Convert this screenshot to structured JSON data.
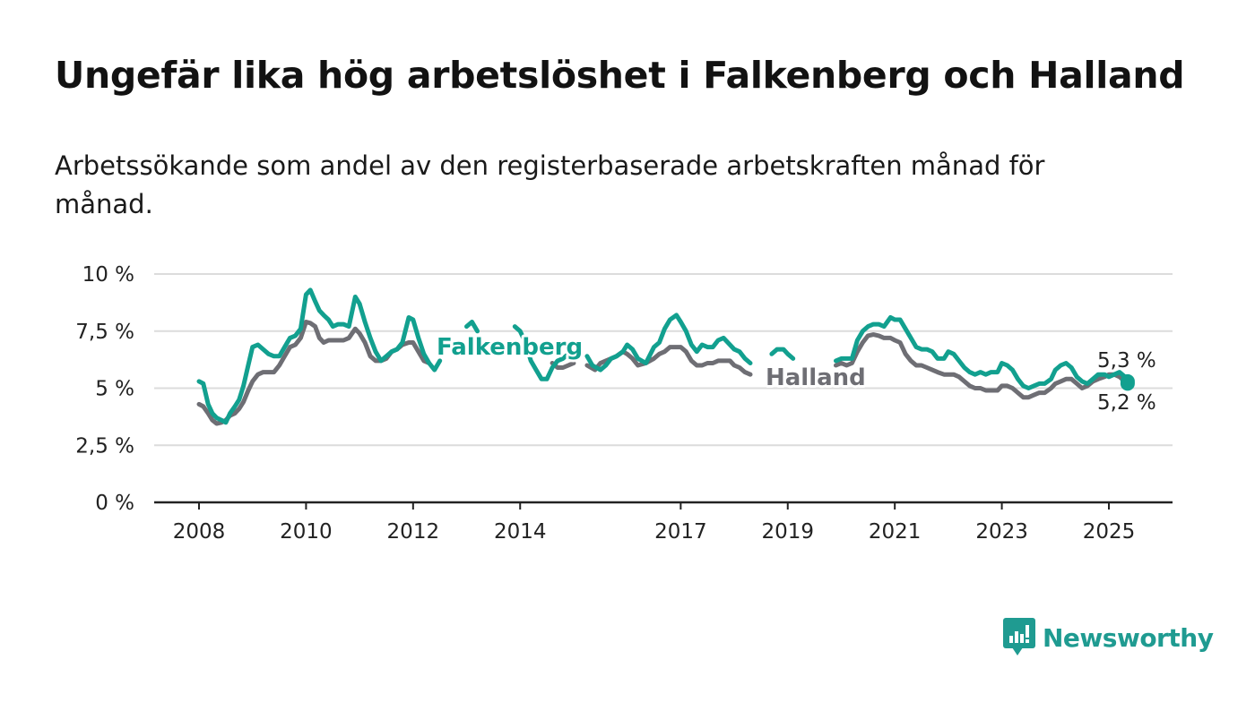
{
  "title": "Ungefär lika hög arbetslöshet i Falkenberg och Halland",
  "subtitle": "Arbetssökande som andel av den registerbaserade arbetskraften månad för månad.",
  "colors": {
    "falkenberg": "#12a08f",
    "halland": "#6e6e74",
    "grid": "#dcdcdc",
    "axis": "#222222"
  },
  "logo": {
    "text": "Newsworthy",
    "icon": "newsworthy-logo-icon"
  },
  "chart_data": {
    "type": "line",
    "x_unit": "year",
    "x_range": [
      2008,
      2025.9
    ],
    "x_ticks": [
      "2008",
      "2010",
      "2012",
      "2014",
      "2017",
      "2019",
      "2021",
      "2023",
      "2025"
    ],
    "ylim": [
      0,
      10
    ],
    "y_ticks": [
      "0 %",
      "2,5 %",
      "5 %",
      "7,5 %",
      "10 %"
    ],
    "grid": true,
    "series": [
      {
        "name": "Halland",
        "end_label": "5,2 %",
        "points": [
          [
            2008.0,
            4.3
          ],
          [
            2008.08,
            4.2
          ],
          [
            2008.17,
            3.9
          ],
          [
            2008.25,
            3.6
          ],
          [
            2008.33,
            3.45
          ],
          [
            2008.42,
            3.5
          ],
          [
            2008.5,
            3.6
          ],
          [
            2008.58,
            3.8
          ],
          [
            2008.67,
            3.9
          ],
          [
            2008.75,
            4.1
          ],
          [
            2008.83,
            4.4
          ],
          [
            2008.92,
            4.9
          ],
          [
            2009.0,
            5.3
          ],
          [
            2009.1,
            5.6
          ],
          [
            2009.2,
            5.7
          ],
          [
            2009.3,
            5.7
          ],
          [
            2009.4,
            5.7
          ],
          [
            2009.5,
            6.0
          ],
          [
            2009.6,
            6.4
          ],
          [
            2009.7,
            6.8
          ],
          [
            2009.8,
            6.9
          ],
          [
            2009.9,
            7.2
          ],
          [
            2010.0,
            7.9
          ],
          [
            2010.08,
            7.85
          ],
          [
            2010.17,
            7.7
          ],
          [
            2010.25,
            7.2
          ],
          [
            2010.33,
            7.0
          ],
          [
            2010.42,
            7.1
          ],
          [
            2010.5,
            7.1
          ],
          [
            2010.6,
            7.1
          ],
          [
            2010.7,
            7.1
          ],
          [
            2010.8,
            7.2
          ],
          [
            2010.92,
            7.6
          ],
          [
            2011.0,
            7.4
          ],
          [
            2011.1,
            7.0
          ],
          [
            2011.2,
            6.4
          ],
          [
            2011.3,
            6.2
          ],
          [
            2011.4,
            6.2
          ],
          [
            2011.5,
            6.3
          ],
          [
            2011.6,
            6.6
          ],
          [
            2011.7,
            6.7
          ],
          [
            2011.8,
            6.9
          ],
          [
            2011.92,
            7.0
          ],
          [
            2012.0,
            7.0
          ],
          [
            2012.1,
            6.6
          ],
          [
            2012.2,
            6.2
          ],
          [
            2012.3,
            6.1
          ],
          [
            2014.6,
            6.1
          ],
          [
            2014.7,
            5.9
          ],
          [
            2014.8,
            5.9
          ],
          [
            2014.9,
            6.0
          ],
          [
            2015.0,
            6.1
          ],
          [
            2015.25,
            6.0
          ],
          [
            2015.4,
            5.8
          ],
          [
            2015.5,
            6.1
          ],
          [
            2015.6,
            6.2
          ],
          [
            2015.7,
            6.3
          ],
          [
            2015.8,
            6.4
          ],
          [
            2015.92,
            6.6
          ],
          [
            2016.0,
            6.5
          ],
          [
            2016.1,
            6.3
          ],
          [
            2016.2,
            6.0
          ],
          [
            2016.35,
            6.1
          ],
          [
            2016.5,
            6.3
          ],
          [
            2016.6,
            6.5
          ],
          [
            2016.7,
            6.6
          ],
          [
            2016.8,
            6.8
          ],
          [
            2016.92,
            6.8
          ],
          [
            2017.0,
            6.8
          ],
          [
            2017.1,
            6.6
          ],
          [
            2017.2,
            6.2
          ],
          [
            2017.3,
            6.0
          ],
          [
            2017.4,
            6.0
          ],
          [
            2017.5,
            6.1
          ],
          [
            2017.6,
            6.1
          ],
          [
            2017.7,
            6.2
          ],
          [
            2017.8,
            6.2
          ],
          [
            2017.92,
            6.2
          ],
          [
            2018.0,
            6.0
          ],
          [
            2018.1,
            5.9
          ],
          [
            2018.2,
            5.7
          ],
          [
            2018.3,
            5.6
          ],
          [
            2019.9,
            6.0
          ],
          [
            2020.0,
            6.1
          ],
          [
            2020.1,
            6.0
          ],
          [
            2020.2,
            6.1
          ],
          [
            2020.3,
            6.6
          ],
          [
            2020.4,
            7.0
          ],
          [
            2020.5,
            7.3
          ],
          [
            2020.6,
            7.35
          ],
          [
            2020.7,
            7.3
          ],
          [
            2020.8,
            7.2
          ],
          [
            2020.92,
            7.2
          ],
          [
            2021.0,
            7.1
          ],
          [
            2021.1,
            7.0
          ],
          [
            2021.2,
            6.5
          ],
          [
            2021.3,
            6.2
          ],
          [
            2021.4,
            6.0
          ],
          [
            2021.5,
            6.0
          ],
          [
            2021.6,
            5.9
          ],
          [
            2021.7,
            5.8
          ],
          [
            2021.8,
            5.7
          ],
          [
            2021.92,
            5.6
          ],
          [
            2022.0,
            5.6
          ],
          [
            2022.1,
            5.6
          ],
          [
            2022.2,
            5.5
          ],
          [
            2022.3,
            5.3
          ],
          [
            2022.4,
            5.1
          ],
          [
            2022.5,
            5.0
          ],
          [
            2022.6,
            5.0
          ],
          [
            2022.7,
            4.9
          ],
          [
            2022.8,
            4.9
          ],
          [
            2022.92,
            4.9
          ],
          [
            2023.0,
            5.1
          ],
          [
            2023.1,
            5.1
          ],
          [
            2023.2,
            5.0
          ],
          [
            2023.3,
            4.8
          ],
          [
            2023.4,
            4.6
          ],
          [
            2023.5,
            4.6
          ],
          [
            2023.6,
            4.7
          ],
          [
            2023.7,
            4.8
          ],
          [
            2023.8,
            4.8
          ],
          [
            2023.92,
            5.0
          ],
          [
            2024.0,
            5.2
          ],
          [
            2024.1,
            5.3
          ],
          [
            2024.2,
            5.4
          ],
          [
            2024.3,
            5.4
          ],
          [
            2024.4,
            5.2
          ],
          [
            2024.5,
            5.0
          ],
          [
            2024.6,
            5.1
          ],
          [
            2024.7,
            5.3
          ],
          [
            2024.8,
            5.4
          ],
          [
            2024.92,
            5.5
          ],
          [
            2025.0,
            5.6
          ],
          [
            2025.1,
            5.6
          ],
          [
            2025.2,
            5.5
          ],
          [
            2025.3,
            5.3
          ],
          [
            2025.35,
            5.2
          ]
        ]
      },
      {
        "name": "Falkenberg",
        "end_label": "5,3 %",
        "points": [
          [
            2008.0,
            5.3
          ],
          [
            2008.08,
            5.2
          ],
          [
            2008.17,
            4.3
          ],
          [
            2008.25,
            3.9
          ],
          [
            2008.33,
            3.7
          ],
          [
            2008.42,
            3.6
          ],
          [
            2008.5,
            3.5
          ],
          [
            2008.58,
            3.9
          ],
          [
            2008.67,
            4.2
          ],
          [
            2008.75,
            4.5
          ],
          [
            2008.83,
            5.1
          ],
          [
            2008.92,
            6.0
          ],
          [
            2009.0,
            6.8
          ],
          [
            2009.1,
            6.9
          ],
          [
            2009.2,
            6.7
          ],
          [
            2009.3,
            6.5
          ],
          [
            2009.4,
            6.4
          ],
          [
            2009.5,
            6.4
          ],
          [
            2009.6,
            6.8
          ],
          [
            2009.7,
            7.2
          ],
          [
            2009.8,
            7.3
          ],
          [
            2009.9,
            7.6
          ],
          [
            2010.0,
            9.1
          ],
          [
            2010.08,
            9.3
          ],
          [
            2010.17,
            8.8
          ],
          [
            2010.25,
            8.4
          ],
          [
            2010.33,
            8.2
          ],
          [
            2010.42,
            8.0
          ],
          [
            2010.5,
            7.7
          ],
          [
            2010.6,
            7.8
          ],
          [
            2010.7,
            7.8
          ],
          [
            2010.8,
            7.7
          ],
          [
            2010.92,
            9.0
          ],
          [
            2011.0,
            8.7
          ],
          [
            2011.1,
            7.9
          ],
          [
            2011.2,
            7.2
          ],
          [
            2011.3,
            6.6
          ],
          [
            2011.4,
            6.2
          ],
          [
            2011.5,
            6.4
          ],
          [
            2011.6,
            6.6
          ],
          [
            2011.7,
            6.7
          ],
          [
            2011.8,
            7.0
          ],
          [
            2011.92,
            8.1
          ],
          [
            2012.0,
            8.0
          ],
          [
            2012.1,
            7.2
          ],
          [
            2012.2,
            6.5
          ],
          [
            2012.3,
            6.1
          ],
          [
            2012.4,
            5.8
          ],
          [
            2012.5,
            6.2
          ],
          [
            2013.0,
            7.7
          ],
          [
            2013.1,
            7.9
          ],
          [
            2013.2,
            7.5
          ],
          [
            2013.9,
            7.7
          ],
          [
            2014.0,
            7.5
          ],
          [
            2014.1,
            7.0
          ],
          [
            2014.2,
            6.2
          ],
          [
            2014.3,
            5.8
          ],
          [
            2014.4,
            5.4
          ],
          [
            2014.5,
            5.4
          ],
          [
            2014.6,
            5.9
          ],
          [
            2014.7,
            6.2
          ],
          [
            2014.8,
            6.3
          ],
          [
            2014.9,
            6.5
          ],
          [
            2015.25,
            6.4
          ],
          [
            2015.35,
            6.0
          ],
          [
            2015.5,
            5.8
          ],
          [
            2015.6,
            6.0
          ],
          [
            2015.7,
            6.3
          ],
          [
            2015.8,
            6.4
          ],
          [
            2015.92,
            6.6
          ],
          [
            2016.0,
            6.9
          ],
          [
            2016.1,
            6.7
          ],
          [
            2016.2,
            6.3
          ],
          [
            2016.35,
            6.1
          ],
          [
            2016.5,
            6.8
          ],
          [
            2016.6,
            7.0
          ],
          [
            2016.7,
            7.6
          ],
          [
            2016.8,
            8.0
          ],
          [
            2016.92,
            8.2
          ],
          [
            2017.0,
            7.9
          ],
          [
            2017.1,
            7.5
          ],
          [
            2017.2,
            6.9
          ],
          [
            2017.3,
            6.6
          ],
          [
            2017.4,
            6.9
          ],
          [
            2017.5,
            6.8
          ],
          [
            2017.6,
            6.8
          ],
          [
            2017.7,
            7.1
          ],
          [
            2017.8,
            7.2
          ],
          [
            2017.92,
            6.9
          ],
          [
            2018.0,
            6.7
          ],
          [
            2018.1,
            6.6
          ],
          [
            2018.2,
            6.3
          ],
          [
            2018.3,
            6.1
          ],
          [
            2018.7,
            6.5
          ],
          [
            2018.8,
            6.7
          ],
          [
            2018.92,
            6.7
          ],
          [
            2019.0,
            6.5
          ],
          [
            2019.1,
            6.3
          ],
          [
            2019.9,
            6.2
          ],
          [
            2020.0,
            6.3
          ],
          [
            2020.1,
            6.3
          ],
          [
            2020.2,
            6.3
          ],
          [
            2020.3,
            7.1
          ],
          [
            2020.4,
            7.5
          ],
          [
            2020.5,
            7.7
          ],
          [
            2020.6,
            7.8
          ],
          [
            2020.7,
            7.8
          ],
          [
            2020.8,
            7.7
          ],
          [
            2020.92,
            8.1
          ],
          [
            2021.0,
            8.0
          ],
          [
            2021.1,
            8.0
          ],
          [
            2021.2,
            7.6
          ],
          [
            2021.3,
            7.2
          ],
          [
            2021.4,
            6.8
          ],
          [
            2021.5,
            6.7
          ],
          [
            2021.6,
            6.7
          ],
          [
            2021.7,
            6.6
          ],
          [
            2021.8,
            6.3
          ],
          [
            2021.92,
            6.3
          ],
          [
            2022.0,
            6.6
          ],
          [
            2022.1,
            6.5
          ],
          [
            2022.2,
            6.2
          ],
          [
            2022.3,
            5.9
          ],
          [
            2022.4,
            5.7
          ],
          [
            2022.5,
            5.6
          ],
          [
            2022.6,
            5.7
          ],
          [
            2022.7,
            5.6
          ],
          [
            2022.8,
            5.7
          ],
          [
            2022.92,
            5.7
          ],
          [
            2023.0,
            6.1
          ],
          [
            2023.1,
            6.0
          ],
          [
            2023.2,
            5.8
          ],
          [
            2023.3,
            5.4
          ],
          [
            2023.4,
            5.1
          ],
          [
            2023.5,
            5.0
          ],
          [
            2023.6,
            5.1
          ],
          [
            2023.7,
            5.2
          ],
          [
            2023.8,
            5.2
          ],
          [
            2023.92,
            5.4
          ],
          [
            2024.0,
            5.8
          ],
          [
            2024.1,
            6.0
          ],
          [
            2024.2,
            6.1
          ],
          [
            2024.3,
            5.9
          ],
          [
            2024.4,
            5.5
          ],
          [
            2024.5,
            5.3
          ],
          [
            2024.6,
            5.2
          ],
          [
            2024.7,
            5.4
          ],
          [
            2024.8,
            5.6
          ],
          [
            2024.92,
            5.6
          ],
          [
            2025.0,
            5.5
          ],
          [
            2025.1,
            5.6
          ],
          [
            2025.2,
            5.7
          ],
          [
            2025.3,
            5.5
          ],
          [
            2025.35,
            5.3
          ]
        ]
      }
    ]
  }
}
